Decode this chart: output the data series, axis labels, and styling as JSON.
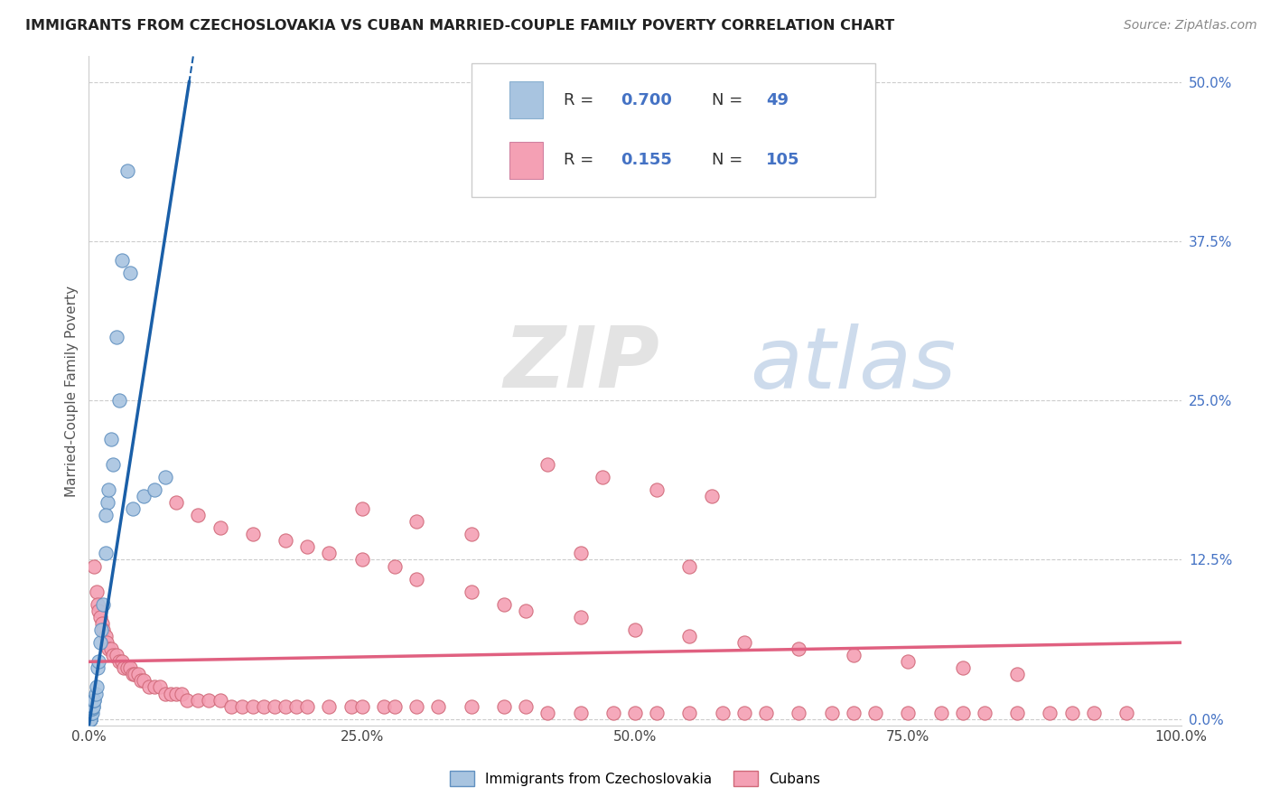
{
  "title": "IMMIGRANTS FROM CZECHOSLOVAKIA VS CUBAN MARRIED-COUPLE FAMILY POVERTY CORRELATION CHART",
  "source": "Source: ZipAtlas.com",
  "ylabel": "Married-Couple Family Poverty",
  "xlim": [
    0,
    1.0
  ],
  "ylim": [
    -0.005,
    0.52
  ],
  "xticklabels": [
    "0.0%",
    "25.0%",
    "50.0%",
    "75.0%",
    "100.0%"
  ],
  "yticks_right": [
    0.0,
    0.125,
    0.25,
    0.375,
    0.5
  ],
  "yticklabels_right": [
    "0.0%",
    "12.5%",
    "25.0%",
    "37.5%",
    "50.0%"
  ],
  "color_czech": "#a8c4e0",
  "color_cuban": "#f4a0b4",
  "color_czech_line": "#1a5fa8",
  "color_cuban_line": "#e06080",
  "background_color": "#ffffff",
  "grid_color": "#cccccc",
  "czech_x": [
    0.0005,
    0.0005,
    0.0007,
    0.0008,
    0.001,
    0.001,
    0.001,
    0.0012,
    0.0013,
    0.0015,
    0.0015,
    0.0017,
    0.002,
    0.002,
    0.002,
    0.002,
    0.0022,
    0.0025,
    0.003,
    0.003,
    0.003,
    0.003,
    0.004,
    0.004,
    0.004,
    0.005,
    0.005,
    0.006,
    0.007,
    0.008,
    0.009,
    0.01,
    0.011,
    0.013,
    0.015,
    0.017,
    0.02,
    0.025,
    0.03,
    0.035,
    0.04,
    0.05,
    0.06,
    0.07,
    0.015,
    0.018,
    0.022,
    0.028,
    0.038
  ],
  "czech_y": [
    0.0,
    0.0,
    0.0,
    0.0,
    0.0,
    0.0,
    0.0,
    0.0,
    0.0,
    0.0,
    0.005,
    0.005,
    0.005,
    0.005,
    0.005,
    0.005,
    0.005,
    0.005,
    0.005,
    0.008,
    0.008,
    0.01,
    0.01,
    0.01,
    0.015,
    0.015,
    0.015,
    0.02,
    0.025,
    0.04,
    0.045,
    0.06,
    0.07,
    0.09,
    0.13,
    0.17,
    0.22,
    0.3,
    0.36,
    0.43,
    0.165,
    0.175,
    0.18,
    0.19,
    0.16,
    0.18,
    0.2,
    0.25,
    0.35
  ],
  "cuban_x": [
    0.005,
    0.007,
    0.008,
    0.009,
    0.01,
    0.012,
    0.013,
    0.015,
    0.016,
    0.018,
    0.02,
    0.022,
    0.025,
    0.028,
    0.03,
    0.032,
    0.035,
    0.038,
    0.04,
    0.042,
    0.045,
    0.048,
    0.05,
    0.055,
    0.06,
    0.065,
    0.07,
    0.075,
    0.08,
    0.085,
    0.09,
    0.1,
    0.11,
    0.12,
    0.13,
    0.14,
    0.15,
    0.16,
    0.17,
    0.18,
    0.19,
    0.2,
    0.22,
    0.24,
    0.25,
    0.27,
    0.28,
    0.3,
    0.32,
    0.35,
    0.38,
    0.4,
    0.42,
    0.45,
    0.48,
    0.5,
    0.52,
    0.55,
    0.58,
    0.6,
    0.62,
    0.65,
    0.68,
    0.7,
    0.72,
    0.75,
    0.78,
    0.8,
    0.82,
    0.85,
    0.88,
    0.9,
    0.92,
    0.95,
    0.08,
    0.1,
    0.12,
    0.15,
    0.18,
    0.2,
    0.22,
    0.25,
    0.28,
    0.3,
    0.35,
    0.38,
    0.4,
    0.45,
    0.5,
    0.55,
    0.6,
    0.65,
    0.7,
    0.75,
    0.8,
    0.85,
    0.42,
    0.47,
    0.52,
    0.57,
    0.25,
    0.3,
    0.35,
    0.45,
    0.55
  ],
  "cuban_y": [
    0.12,
    0.1,
    0.09,
    0.085,
    0.08,
    0.075,
    0.07,
    0.065,
    0.06,
    0.055,
    0.055,
    0.05,
    0.05,
    0.045,
    0.045,
    0.04,
    0.04,
    0.04,
    0.035,
    0.035,
    0.035,
    0.03,
    0.03,
    0.025,
    0.025,
    0.025,
    0.02,
    0.02,
    0.02,
    0.02,
    0.015,
    0.015,
    0.015,
    0.015,
    0.01,
    0.01,
    0.01,
    0.01,
    0.01,
    0.01,
    0.01,
    0.01,
    0.01,
    0.01,
    0.01,
    0.01,
    0.01,
    0.01,
    0.01,
    0.01,
    0.01,
    0.01,
    0.005,
    0.005,
    0.005,
    0.005,
    0.005,
    0.005,
    0.005,
    0.005,
    0.005,
    0.005,
    0.005,
    0.005,
    0.005,
    0.005,
    0.005,
    0.005,
    0.005,
    0.005,
    0.005,
    0.005,
    0.005,
    0.005,
    0.17,
    0.16,
    0.15,
    0.145,
    0.14,
    0.135,
    0.13,
    0.125,
    0.12,
    0.11,
    0.1,
    0.09,
    0.085,
    0.08,
    0.07,
    0.065,
    0.06,
    0.055,
    0.05,
    0.045,
    0.04,
    0.035,
    0.2,
    0.19,
    0.18,
    0.175,
    0.165,
    0.155,
    0.145,
    0.13,
    0.12
  ],
  "czech_line_slope": 5.5,
  "czech_line_intercept": -0.005,
  "cuban_line_slope": 0.015,
  "cuban_line_intercept": 0.045
}
